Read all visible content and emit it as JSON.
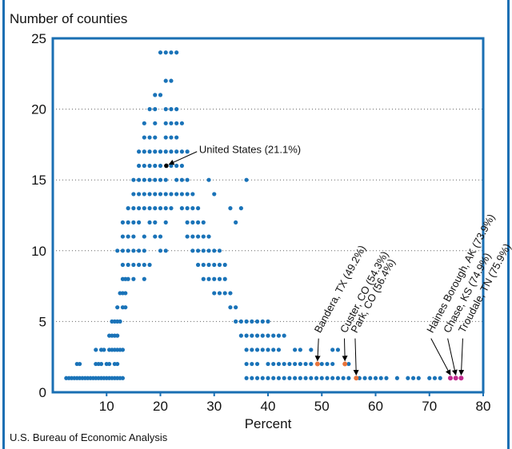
{
  "chart_data": {
    "type": "scatter",
    "title": "",
    "xlabel": "Percent",
    "ylabel": "Number of counties",
    "xlim": [
      0,
      80
    ],
    "ylim": [
      0,
      25
    ],
    "xticks": [
      10,
      20,
      30,
      40,
      50,
      60,
      70,
      80
    ],
    "yticks": [
      0,
      5,
      10,
      15,
      20,
      25
    ],
    "grid": "horizontal-dotted",
    "colors": {
      "default": "#1a73b8",
      "us": "#000000",
      "orange": "#e8743b",
      "magenta": "#c02a8e",
      "frame": "#1a6fb3"
    },
    "series": [
      {
        "values": [
          [
            2.5,
            1
          ],
          [
            3,
            1
          ],
          [
            3.5,
            1
          ],
          [
            4,
            1
          ],
          [
            4.5,
            1
          ],
          [
            5,
            1
          ],
          [
            5.5,
            1
          ],
          [
            6,
            1
          ],
          [
            6.5,
            1
          ],
          [
            7,
            1
          ],
          [
            7.5,
            1
          ],
          [
            8,
            1
          ],
          [
            8.5,
            1
          ],
          [
            9,
            1
          ],
          [
            9.5,
            1
          ],
          [
            10,
            1
          ],
          [
            10.5,
            1
          ],
          [
            11,
            1
          ],
          [
            11.5,
            1
          ],
          [
            12,
            1
          ],
          [
            12.5,
            1
          ],
          [
            13,
            1
          ],
          [
            4.5,
            2
          ],
          [
            5,
            2
          ],
          [
            8,
            2
          ],
          [
            8.5,
            2
          ],
          [
            9,
            2
          ],
          [
            10,
            2
          ],
          [
            10.5,
            2
          ],
          [
            11.5,
            2
          ],
          [
            12,
            2
          ],
          [
            8,
            3
          ],
          [
            9,
            3
          ],
          [
            9.5,
            3
          ],
          [
            10.5,
            3
          ],
          [
            11,
            3
          ],
          [
            11.5,
            3
          ],
          [
            12,
            3
          ],
          [
            12.5,
            3
          ],
          [
            13,
            3
          ],
          [
            10.5,
            4
          ],
          [
            11,
            4
          ],
          [
            11.5,
            4
          ],
          [
            12,
            4
          ],
          [
            11,
            5
          ],
          [
            11.5,
            5
          ],
          [
            12,
            5
          ],
          [
            12.5,
            5
          ],
          [
            12,
            6
          ],
          [
            13,
            6
          ],
          [
            13.5,
            6
          ],
          [
            12.5,
            7
          ],
          [
            13,
            7
          ],
          [
            13.5,
            7
          ],
          [
            13,
            8
          ],
          [
            13.5,
            8
          ],
          [
            14,
            8
          ],
          [
            15,
            8
          ],
          [
            17,
            8
          ],
          [
            13,
            9
          ],
          [
            14,
            9
          ],
          [
            15,
            9
          ],
          [
            16,
            9
          ],
          [
            17,
            9
          ],
          [
            18,
            9
          ],
          [
            12,
            10
          ],
          [
            13,
            10
          ],
          [
            14,
            10
          ],
          [
            15,
            10
          ],
          [
            16,
            10
          ],
          [
            17,
            10
          ],
          [
            20,
            10
          ],
          [
            21,
            10
          ],
          [
            13,
            11
          ],
          [
            14,
            11
          ],
          [
            15,
            11
          ],
          [
            17,
            11
          ],
          [
            19,
            11
          ],
          [
            20,
            11
          ],
          [
            13,
            12
          ],
          [
            14,
            12
          ],
          [
            15,
            12
          ],
          [
            16,
            12
          ],
          [
            18,
            12
          ],
          [
            19,
            12
          ],
          [
            21,
            12
          ],
          [
            14,
            13
          ],
          [
            15,
            13
          ],
          [
            16,
            13
          ],
          [
            17,
            13
          ],
          [
            18,
            13
          ],
          [
            19,
            13
          ],
          [
            20,
            13
          ],
          [
            21,
            13
          ],
          [
            22,
            13
          ],
          [
            15,
            14
          ],
          [
            16,
            14
          ],
          [
            17,
            14
          ],
          [
            18,
            14
          ],
          [
            19,
            14
          ],
          [
            20,
            14
          ],
          [
            21,
            14
          ],
          [
            22,
            14
          ],
          [
            23,
            14
          ],
          [
            15,
            15
          ],
          [
            16,
            15
          ],
          [
            17,
            15
          ],
          [
            18,
            15
          ],
          [
            19,
            15
          ],
          [
            20,
            15
          ],
          [
            21,
            15
          ],
          [
            23,
            15
          ],
          [
            24,
            15
          ],
          [
            25,
            15
          ],
          [
            16,
            16
          ],
          [
            17,
            16
          ],
          [
            18,
            16
          ],
          [
            19,
            16
          ],
          [
            20,
            16
          ],
          [
            22,
            16
          ],
          [
            23,
            16
          ],
          [
            24,
            16
          ],
          [
            16,
            17
          ],
          [
            17,
            17
          ],
          [
            18,
            17
          ],
          [
            19,
            17
          ],
          [
            20,
            17
          ],
          [
            21,
            17
          ],
          [
            22,
            17
          ],
          [
            23,
            17
          ],
          [
            24,
            17
          ],
          [
            25,
            17
          ],
          [
            17,
            18
          ],
          [
            18,
            18
          ],
          [
            19,
            18
          ],
          [
            21,
            18
          ],
          [
            22,
            18
          ],
          [
            23,
            18
          ],
          [
            17,
            19
          ],
          [
            19,
            19
          ],
          [
            21,
            19
          ],
          [
            22,
            19
          ],
          [
            23,
            19
          ],
          [
            24,
            19
          ],
          [
            18,
            20
          ],
          [
            19,
            20
          ],
          [
            21,
            20
          ],
          [
            22,
            20
          ],
          [
            23,
            20
          ],
          [
            19,
            21
          ],
          [
            20,
            21
          ],
          [
            21,
            22
          ],
          [
            22,
            22
          ],
          [
            20,
            24
          ],
          [
            21,
            24
          ],
          [
            22,
            24
          ],
          [
            23,
            24
          ],
          [
            24,
            14
          ],
          [
            25,
            14
          ],
          [
            26,
            14
          ],
          [
            24,
            13
          ],
          [
            25,
            13
          ],
          [
            26,
            13
          ],
          [
            27,
            13
          ],
          [
            25,
            12
          ],
          [
            26,
            12
          ],
          [
            27,
            12
          ],
          [
            28,
            12
          ],
          [
            25,
            11
          ],
          [
            26,
            11
          ],
          [
            27,
            11
          ],
          [
            28,
            11
          ],
          [
            29,
            11
          ],
          [
            26,
            10
          ],
          [
            27,
            10
          ],
          [
            28,
            10
          ],
          [
            29,
            10
          ],
          [
            30,
            10
          ],
          [
            31,
            10
          ],
          [
            27,
            9
          ],
          [
            28,
            9
          ],
          [
            29,
            9
          ],
          [
            30,
            9
          ],
          [
            31,
            9
          ],
          [
            32,
            9
          ],
          [
            28,
            8
          ],
          [
            29,
            8
          ],
          [
            30,
            8
          ],
          [
            31,
            8
          ],
          [
            32,
            8
          ],
          [
            30,
            7
          ],
          [
            31,
            7
          ],
          [
            32,
            7
          ],
          [
            33,
            7
          ],
          [
            33,
            6
          ],
          [
            34,
            6
          ],
          [
            34,
            5
          ],
          [
            35,
            5
          ],
          [
            36,
            5
          ],
          [
            37,
            5
          ],
          [
            38,
            5
          ],
          [
            39,
            5
          ],
          [
            40,
            5
          ],
          [
            35,
            4
          ],
          [
            36,
            4
          ],
          [
            37,
            4
          ],
          [
            38,
            4
          ],
          [
            39,
            4
          ],
          [
            40,
            4
          ],
          [
            41,
            4
          ],
          [
            42,
            4
          ],
          [
            43,
            4
          ],
          [
            36,
            3
          ],
          [
            37,
            3
          ],
          [
            38,
            3
          ],
          [
            39,
            3
          ],
          [
            40,
            3
          ],
          [
            41,
            3
          ],
          [
            42,
            3
          ],
          [
            45,
            3
          ],
          [
            46,
            3
          ],
          [
            48,
            3
          ],
          [
            52,
            3
          ],
          [
            53,
            3
          ],
          [
            36,
            2
          ],
          [
            37,
            2
          ],
          [
            38,
            2
          ],
          [
            40,
            2
          ],
          [
            41,
            2
          ],
          [
            42,
            2
          ],
          [
            43,
            2
          ],
          [
            44,
            2
          ],
          [
            45,
            2
          ],
          [
            46,
            2
          ],
          [
            47,
            2
          ],
          [
            48,
            2
          ],
          [
            50,
            2
          ],
          [
            51,
            2
          ],
          [
            52,
            2
          ],
          [
            55,
            2
          ],
          [
            36,
            1
          ],
          [
            37,
            1
          ],
          [
            38,
            1
          ],
          [
            39,
            1
          ],
          [
            40,
            1
          ],
          [
            41,
            1
          ],
          [
            42,
            1
          ],
          [
            43,
            1
          ],
          [
            44,
            1
          ],
          [
            45,
            1
          ],
          [
            46,
            1
          ],
          [
            47,
            1
          ],
          [
            48,
            1
          ],
          [
            49,
            1
          ],
          [
            50,
            1
          ],
          [
            51,
            1
          ],
          [
            52,
            1
          ],
          [
            53,
            1
          ],
          [
            54,
            1
          ],
          [
            55,
            1
          ],
          [
            57,
            1
          ],
          [
            58,
            1
          ],
          [
            59,
            1
          ],
          [
            60,
            1
          ],
          [
            61,
            1
          ],
          [
            62,
            1
          ],
          [
            64,
            1
          ],
          [
            66,
            1
          ],
          [
            67,
            1
          ],
          [
            68,
            1
          ],
          [
            70,
            1
          ],
          [
            71,
            1
          ],
          [
            72,
            1
          ],
          [
            36,
            15
          ],
          [
            35,
            13
          ],
          [
            34,
            12
          ],
          [
            33,
            13
          ],
          [
            30,
            14
          ],
          [
            29,
            15
          ]
        ]
      }
    ],
    "annotations": [
      {
        "label": "United States (21.1%)",
        "x": 21.1,
        "y": 16
      },
      {
        "label": "Bandera, TX (49.2%)",
        "x": 49.2,
        "y": 2
      },
      {
        "label": "Custer, CO (54.3%)",
        "x": 54.3,
        "y": 2
      },
      {
        "label": "Park, CO (56.4%)",
        "x": 56.4,
        "y": 1
      },
      {
        "label": "Haines Borough, AK (73.9%)",
        "x": 73.9,
        "y": 1
      },
      {
        "label": "Chase, KS (74.9%)",
        "x": 74.9,
        "y": 1
      },
      {
        "label": "Troudale, TN (75.9%)",
        "x": 75.9,
        "y": 1
      }
    ],
    "source": "U.S. Bureau of Economic Analysis"
  }
}
